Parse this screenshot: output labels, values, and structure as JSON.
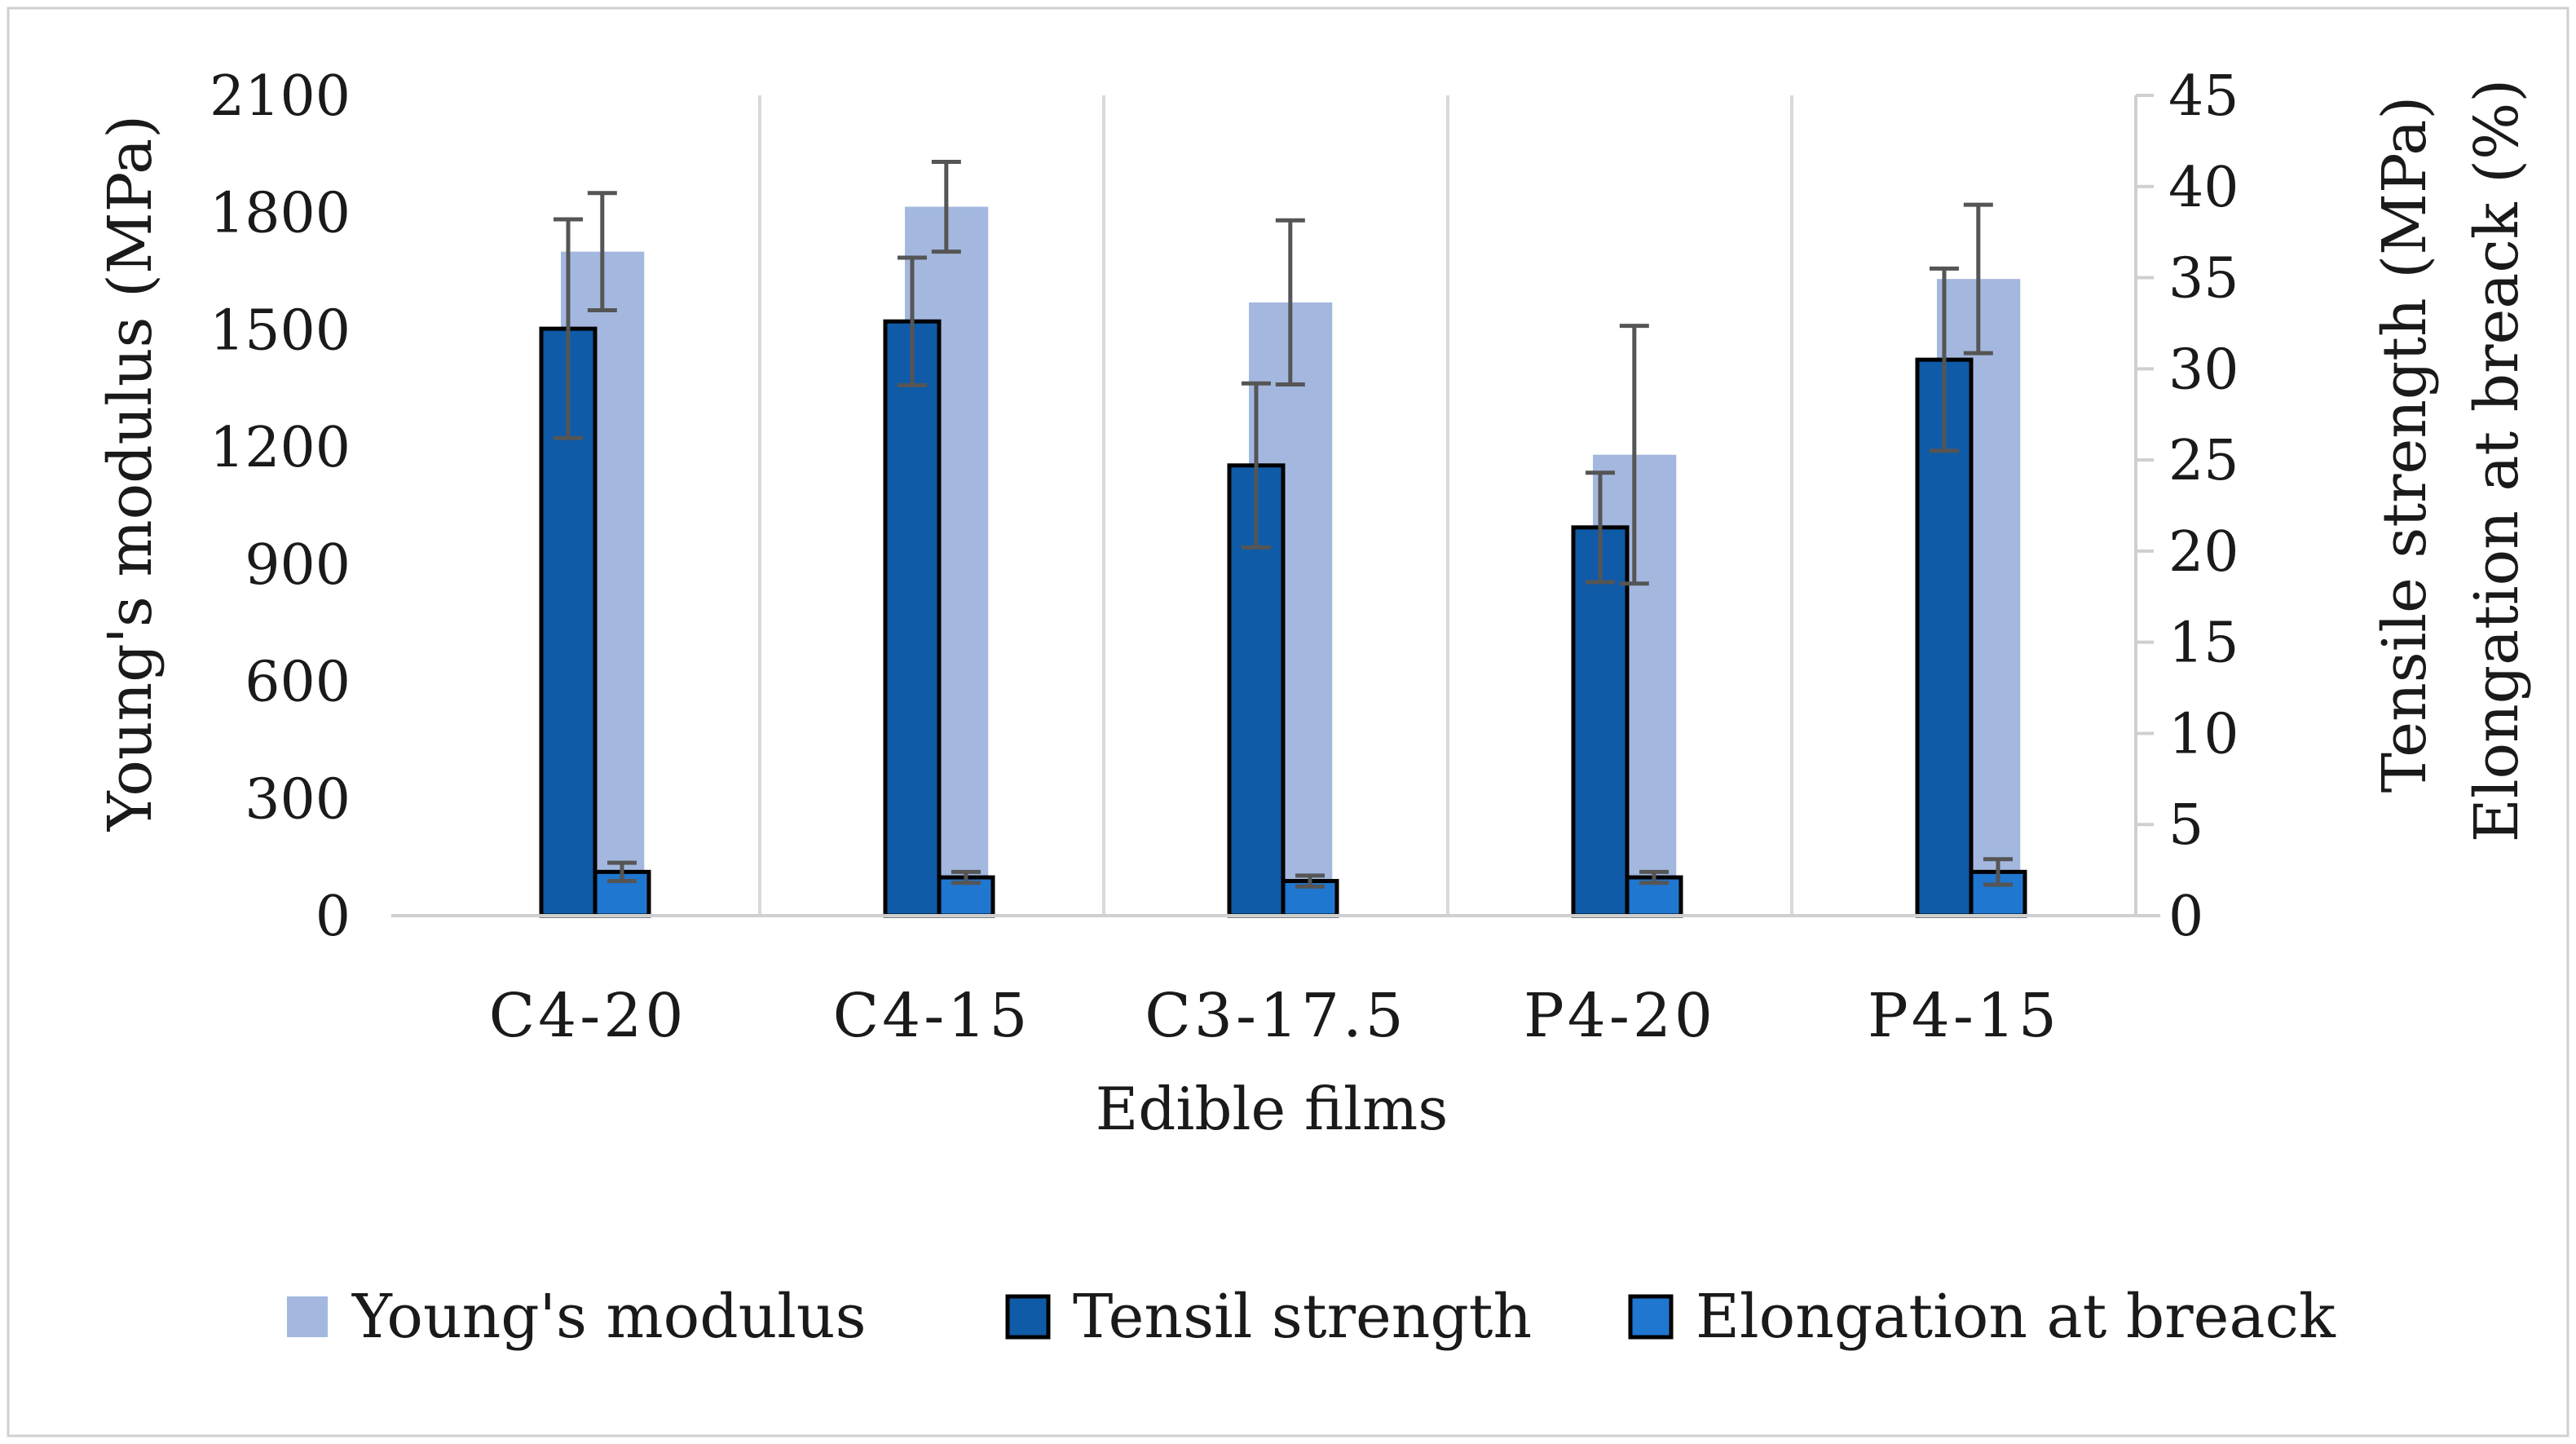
{
  "chart_data": {
    "type": "bar",
    "title": "",
    "xlabel": "Edible films",
    "ylabel_left": "Young's modulus (MPa)",
    "ylabel_right": [
      "Tensile strength (MPa)",
      "Elongation at breack (%)"
    ],
    "categories": [
      "C4-20",
      "C4-15",
      "C3-17.5",
      "P4-20",
      "P4-15"
    ],
    "ylim_left": [
      0,
      2100
    ],
    "yticks_left": [
      0,
      300,
      600,
      900,
      1200,
      1500,
      1800,
      2100
    ],
    "ylim_right": [
      0,
      45
    ],
    "yticks_right": [
      0,
      5,
      10,
      15,
      20,
      25,
      30,
      35,
      40,
      45
    ],
    "legend_position": "bottom",
    "series": [
      {
        "name": "Young's modulus",
        "axis": "left",
        "color": "#a4b8df",
        "values": [
          1700,
          1815,
          1570,
          1180,
          1630
        ],
        "errors": [
          150,
          115,
          210,
          330,
          190
        ]
      },
      {
        "name": "Tensil strength",
        "axis": "right",
        "color": "#0f5ba7",
        "values": [
          32.2,
          32.6,
          24.7,
          21.3,
          30.5
        ],
        "errors": [
          6.0,
          3.5,
          4.5,
          3.0,
          5.0
        ]
      },
      {
        "name": "Elongation at breack",
        "axis": "right",
        "color": "#1f77d0",
        "values": [
          2.4,
          2.1,
          1.9,
          2.1,
          2.4
        ],
        "errors": [
          0.5,
          0.3,
          0.3,
          0.3,
          0.7
        ]
      }
    ]
  }
}
